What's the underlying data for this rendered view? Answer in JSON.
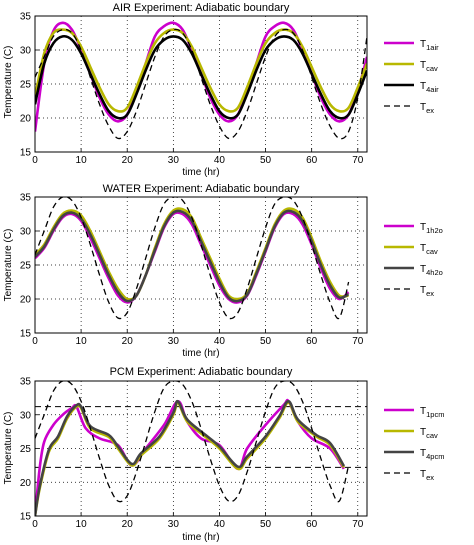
{
  "chart_data": [
    {
      "type": "line",
      "title": "AIR Experiment: Adiabatic boundary",
      "xlabel": "time (hr)",
      "ylabel": "Temperature (C)",
      "xlim": [
        0,
        72
      ],
      "ylim": [
        15,
        35
      ],
      "xticks": [
        "0",
        "10",
        "20",
        "30",
        "40",
        "50",
        "60",
        "70"
      ],
      "yticks": [
        "15",
        "20",
        "25",
        "30",
        "35"
      ],
      "grid": true,
      "legend_position": "right",
      "series": [
        {
          "base": "T",
          "sub": "1air",
          "color": "#cc00cc",
          "dash": "",
          "thick": true,
          "x": [
            0,
            2,
            4,
            6,
            8,
            10,
            12,
            14,
            16,
            18,
            20,
            22,
            24,
            26,
            28,
            30,
            32,
            34,
            36,
            38,
            40,
            42,
            44,
            46,
            48,
            50,
            52,
            54,
            56,
            58,
            60,
            62,
            64,
            66,
            68,
            70,
            72
          ],
          "y": [
            18,
            28,
            32.8,
            34,
            33,
            30,
            26.5,
            23,
            20.5,
            19.5,
            20.5,
            24,
            28,
            32,
            33.5,
            34,
            33,
            30,
            26.5,
            23,
            20.5,
            19.5,
            20.5,
            24,
            28,
            32,
            33.5,
            34,
            33,
            30,
            26.5,
            23,
            20.5,
            19.5,
            20.5,
            24,
            29
          ]
        },
        {
          "base": "T",
          "sub": "cav",
          "color": "#b8b800",
          "dash": "",
          "thick": true,
          "x": [
            0,
            2,
            4,
            6,
            8,
            10,
            12,
            14,
            16,
            18,
            20,
            22,
            24,
            26,
            28,
            30,
            32,
            34,
            36,
            38,
            40,
            42,
            44,
            46,
            48,
            50,
            52,
            54,
            56,
            58,
            60,
            62,
            64,
            66,
            68,
            70,
            72
          ],
          "y": [
            23,
            29.5,
            32.5,
            33,
            32.5,
            30.5,
            27.5,
            24.5,
            22,
            21,
            21.5,
            24.5,
            28,
            31,
            32.5,
            33,
            32.5,
            30.5,
            27.5,
            24.5,
            22,
            21,
            21.5,
            24.5,
            28,
            31,
            32.5,
            33,
            32.5,
            30.5,
            27.5,
            24.5,
            22,
            21,
            21.5,
            24.5,
            28
          ]
        },
        {
          "base": "T",
          "sub": "4air",
          "color": "#000000",
          "dash": "",
          "thick": true,
          "x": [
            0,
            2,
            4,
            6,
            8,
            10,
            12,
            14,
            16,
            18,
            20,
            22,
            24,
            26,
            28,
            30,
            32,
            34,
            36,
            38,
            40,
            42,
            44,
            46,
            48,
            50,
            52,
            54,
            56,
            58,
            60,
            62,
            64,
            66,
            68,
            70,
            72
          ],
          "y": [
            22,
            28,
            31,
            32,
            31.5,
            29.5,
            26.5,
            23.5,
            21,
            20,
            20.5,
            23.5,
            27,
            30,
            31.5,
            32,
            31.5,
            29.5,
            26.5,
            23.5,
            21,
            20,
            20.5,
            23.5,
            27,
            30,
            31.5,
            32,
            31.5,
            29.5,
            26.5,
            23.5,
            21,
            20,
            20.5,
            23.5,
            27
          ]
        },
        {
          "base": "T",
          "sub": "ex",
          "color": "#000000",
          "dash": "6,4",
          "thick": false,
          "x": [
            0,
            2,
            4,
            6,
            8,
            10,
            12,
            14,
            16,
            18,
            20,
            22,
            24,
            26,
            28,
            30,
            32,
            34,
            36,
            38,
            40,
            42,
            44,
            46,
            48,
            50,
            52,
            54,
            56,
            58,
            60,
            62,
            64,
            66,
            68,
            70,
            72
          ],
          "y": [
            26,
            29,
            32,
            33,
            32.5,
            30,
            26,
            22,
            18.8,
            17,
            18,
            21,
            25,
            29,
            32,
            33,
            32.5,
            30,
            26,
            22,
            18.8,
            17,
            18,
            21,
            25,
            29,
            32,
            33,
            32.5,
            30,
            26,
            22,
            18.8,
            17,
            18,
            23,
            32
          ]
        }
      ]
    },
    {
      "type": "line",
      "title": "WATER Experiment: Adiabatic boundary",
      "xlabel": "time (hr)",
      "ylabel": "Temperature (C)",
      "xlim": [
        0,
        72
      ],
      "ylim": [
        15,
        35
      ],
      "xticks": [
        "0",
        "10",
        "20",
        "30",
        "40",
        "50",
        "60",
        "70"
      ],
      "yticks": [
        "15",
        "20",
        "25",
        "30",
        "35"
      ],
      "grid": true,
      "legend_position": "right",
      "series": [
        {
          "base": "T",
          "sub": "1h2o",
          "color": "#cc00cc",
          "dash": "",
          "thick": true,
          "x": [
            0,
            2,
            4,
            6,
            8,
            10,
            12,
            14,
            16,
            18,
            20,
            22,
            24,
            26,
            28,
            30,
            32,
            34,
            36,
            38,
            40,
            42,
            44,
            46,
            48,
            50,
            52,
            54,
            56,
            58,
            60,
            62,
            64,
            66,
            68
          ],
          "y": [
            26,
            27.5,
            30,
            32,
            32.5,
            31.5,
            29,
            26,
            23,
            20.5,
            19.5,
            20.5,
            23.5,
            27,
            30.5,
            32.5,
            32.5,
            31,
            28,
            25,
            22,
            20,
            19.5,
            20.5,
            23.5,
            27,
            30.5,
            32.5,
            32.5,
            31,
            28,
            24.5,
            21.5,
            20,
            21
          ]
        },
        {
          "base": "T",
          "sub": "cav",
          "color": "#b8b800",
          "dash": "",
          "thick": true,
          "x": [
            0,
            2,
            4,
            6,
            8,
            10,
            12,
            14,
            16,
            18,
            20,
            22,
            24,
            26,
            28,
            30,
            32,
            34,
            36,
            38,
            40,
            42,
            44,
            46,
            48,
            50,
            52,
            54,
            56,
            58,
            60,
            62,
            64,
            66,
            68
          ],
          "y": [
            26.5,
            28,
            30.5,
            32.5,
            33,
            32.3,
            30,
            27,
            24,
            21.5,
            20,
            20.5,
            23.5,
            27.5,
            31,
            33,
            33.2,
            32,
            29,
            26,
            23,
            20.5,
            20,
            20.8,
            24,
            27.5,
            31,
            33,
            33.2,
            32,
            29,
            25.5,
            22.5,
            20.5,
            20.5
          ]
        },
        {
          "base": "T",
          "sub": "4h2o",
          "color": "#444444",
          "dash": "",
          "thick": true,
          "x": [
            0,
            2,
            4,
            6,
            8,
            10,
            12,
            14,
            16,
            18,
            20,
            22,
            24,
            26,
            28,
            30,
            32,
            34,
            36,
            38,
            40,
            42,
            44,
            46,
            48,
            50,
            52,
            54,
            56,
            58,
            60,
            62,
            64,
            66,
            68
          ],
          "y": [
            26.2,
            27.7,
            30.2,
            32.2,
            32.7,
            31.8,
            29.5,
            26.5,
            23.5,
            21,
            19.7,
            20.5,
            23.5,
            27.2,
            30.7,
            32.7,
            32.8,
            31.5,
            28.5,
            25.5,
            22.5,
            20.2,
            19.7,
            20.6,
            23.7,
            27.2,
            30.7,
            32.7,
            32.8,
            31.5,
            28.5,
            25,
            22,
            20.2,
            20.7
          ]
        },
        {
          "base": "T",
          "sub": "ex",
          "color": "#000000",
          "dash": "6,4",
          "thick": false,
          "x": [
            0,
            2,
            4,
            6,
            8,
            10,
            12,
            14,
            16,
            18,
            20,
            22,
            24,
            26,
            28,
            30,
            32,
            34,
            36,
            38,
            40,
            42,
            44,
            46,
            48,
            50,
            52,
            54,
            56,
            58,
            60,
            62,
            64,
            66,
            68
          ],
          "y": [
            26.5,
            30,
            33.5,
            35,
            34.5,
            32,
            28,
            23.5,
            19.5,
            17.2,
            18,
            21.5,
            26,
            30.5,
            34,
            35,
            34.5,
            32,
            28,
            23.5,
            19.5,
            17.2,
            18,
            21.5,
            26,
            30.5,
            34,
            35,
            34.5,
            32,
            28,
            23.5,
            19.5,
            17.2,
            22.5
          ]
        }
      ]
    },
    {
      "type": "line",
      "title": "PCM Experiment: Adiabatic boundary",
      "xlabel": "time (hr)",
      "ylabel": "Temperature (C)",
      "xlim": [
        0,
        72
      ],
      "ylim": [
        15,
        35
      ],
      "xticks": [
        "0",
        "10",
        "20",
        "30",
        "40",
        "50",
        "60",
        "70"
      ],
      "yticks": [
        "15",
        "20",
        "25",
        "30",
        "35"
      ],
      "grid": true,
      "legend_position": "right",
      "hlines": [
        31.2,
        22.2
      ],
      "series": [
        {
          "base": "T",
          "sub": "1pcm",
          "color": "#cc00cc",
          "dash": "",
          "thick": true,
          "x": [
            0,
            1,
            2,
            4,
            6,
            8,
            9,
            11,
            14,
            18,
            21,
            24,
            28,
            31,
            33,
            36,
            40,
            44,
            46,
            50,
            54,
            55,
            57,
            60,
            64,
            67
          ],
          "y": [
            15,
            22,
            26,
            28.5,
            30,
            31,
            31.2,
            28,
            26.5,
            25.5,
            22.5,
            25,
            28.5,
            32,
            29,
            26.5,
            25.5,
            22,
            25,
            28.5,
            31.5,
            32,
            29,
            26.5,
            25,
            22
          ]
        },
        {
          "base": "T",
          "sub": "cav",
          "color": "#b8b800",
          "dash": "",
          "thick": true,
          "x": [
            0,
            1,
            3,
            5,
            7,
            9,
            10,
            12,
            16,
            18,
            21,
            23,
            27,
            30,
            31,
            33,
            37,
            40,
            44,
            46,
            50,
            53,
            55,
            57,
            61,
            64,
            67
          ],
          "y": [
            15,
            19,
            24.5,
            26.5,
            29.5,
            31.2,
            31,
            28,
            26.7,
            25,
            22.5,
            24,
            26.5,
            30,
            31.8,
            29,
            26.7,
            25,
            22,
            23.5,
            26.5,
            29.5,
            31.8,
            29,
            26.8,
            25.5,
            22.2
          ]
        },
        {
          "base": "T",
          "sub": "4pcm",
          "color": "#444444",
          "dash": "",
          "thick": true,
          "x": [
            0,
            1,
            3,
            5,
            7,
            9,
            10,
            12,
            16,
            18,
            21,
            23,
            27,
            30,
            31,
            33,
            37,
            40,
            44,
            46,
            50,
            53,
            55,
            57,
            61,
            64,
            67
          ],
          "y": [
            15,
            19.3,
            24.8,
            26.8,
            29.8,
            31.4,
            31.2,
            28.3,
            27,
            25.3,
            22.7,
            24.3,
            26.8,
            30.3,
            32,
            29.3,
            27,
            25.3,
            22.3,
            23.8,
            26.8,
            29.8,
            32,
            29.3,
            27,
            25.8,
            22.4
          ]
        },
        {
          "base": "T",
          "sub": "ex",
          "color": "#000000",
          "dash": "6,4",
          "thick": false,
          "x": [
            0,
            2,
            4,
            6,
            8,
            10,
            12,
            14,
            16,
            18,
            20,
            22,
            24,
            26,
            28,
            30,
            32,
            34,
            36,
            38,
            40,
            42,
            44,
            46,
            48,
            50,
            52,
            54,
            56,
            58,
            60,
            62,
            64,
            66,
            68
          ],
          "y": [
            26.5,
            30,
            33.5,
            35,
            34.5,
            32,
            28,
            23.5,
            19.5,
            17.2,
            18,
            21.5,
            26,
            30.5,
            34,
            35,
            34.5,
            32,
            28,
            23.5,
            19.5,
            17.2,
            18,
            21.5,
            26,
            30.5,
            34,
            35,
            34.5,
            32,
            28,
            23.5,
            19.5,
            17.2,
            22.5
          ]
        }
      ]
    }
  ]
}
